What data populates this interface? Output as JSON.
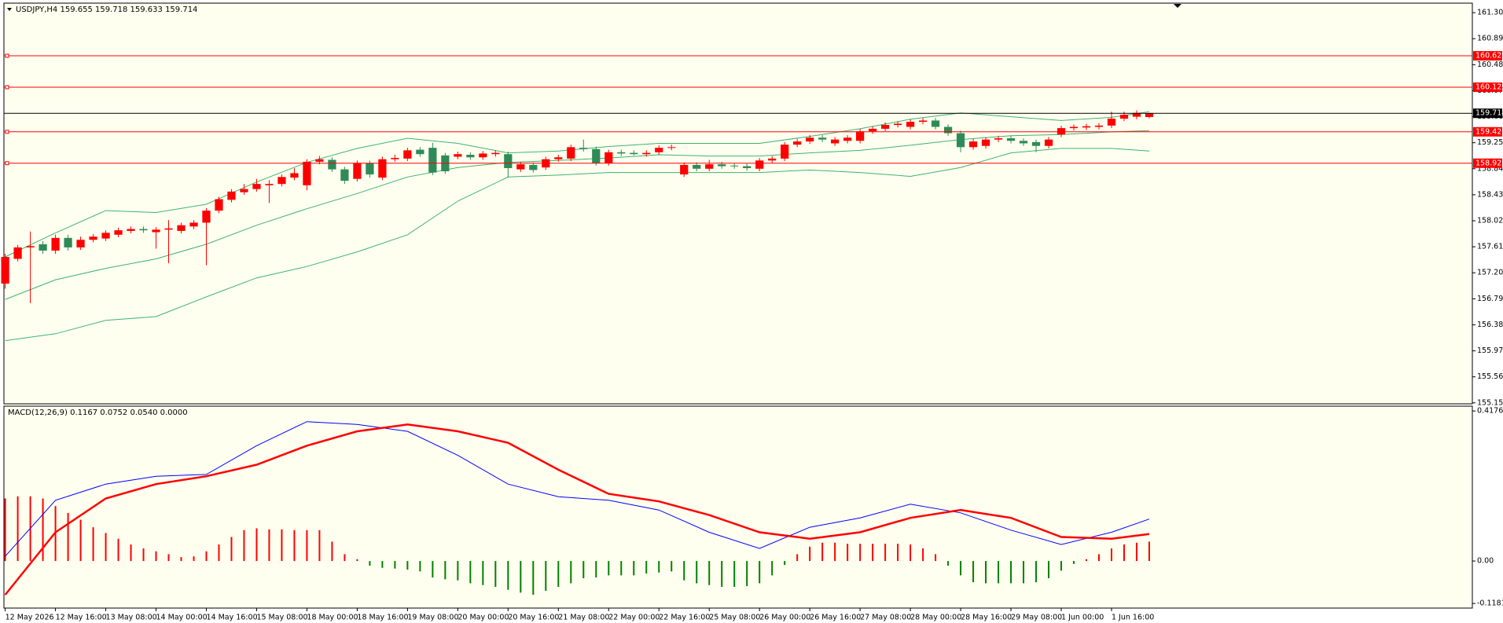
{
  "chart_data": [
    {
      "type": "candlestick",
      "title": "USDJPY,H4  159.655 159.718 159.633 159.714",
      "up_color": "#ff0000",
      "down_color": "#2e8b57",
      "xlim": [
        -0.1,
        116.7
      ],
      "ylim": [
        155.135,
        161.45
      ],
      "yticks": [
        {
          "value": 161.3,
          "label": "161.300"
        },
        {
          "value": 160.89,
          "label": "160.890"
        },
        {
          "value": 160.48,
          "label": "160.480"
        },
        {
          "value": 160.07,
          "label": "160.070"
        },
        {
          "value": 159.66,
          "label": "159.660"
        },
        {
          "value": 159.25,
          "label": "159.250"
        },
        {
          "value": 158.84,
          "label": "158.840"
        },
        {
          "value": 158.43,
          "label": "158.430"
        },
        {
          "value": 158.02,
          "label": "158.020"
        },
        {
          "value": 157.61,
          "label": "157.610"
        },
        {
          "value": 157.2,
          "label": "157.200"
        },
        {
          "value": 156.79,
          "label": "156.790"
        },
        {
          "value": 156.38,
          "label": "156.380"
        },
        {
          "value": 155.97,
          "label": "155.970"
        },
        {
          "value": 155.56,
          "label": "155.560"
        },
        {
          "value": 155.15,
          "label": "155.150"
        }
      ],
      "hlines": [
        {
          "value": 160.62,
          "label": "160.620",
          "color": "#ff0000"
        },
        {
          "value": 160.125,
          "label": "160.125",
          "color": "#ff0000"
        },
        {
          "value": 159.422,
          "label": "159.422",
          "color": "#ff0000"
        },
        {
          "value": 158.927,
          "label": "158.927",
          "color": "#ff0000"
        },
        {
          "value": 159.714,
          "label": "159.714",
          "color": "#000000"
        }
      ],
      "candles": [
        [
          157.03,
          157.5,
          156.95,
          157.45
        ],
        [
          157.42,
          157.64,
          157.38,
          157.6
        ],
        [
          157.6,
          157.85,
          156.72,
          157.62
        ],
        [
          157.65,
          157.7,
          157.5,
          157.55
        ],
        [
          157.55,
          157.8,
          157.5,
          157.75
        ],
        [
          157.75,
          157.8,
          157.55,
          157.6
        ],
        [
          157.6,
          157.77,
          157.56,
          157.72
        ],
        [
          157.72,
          157.81,
          157.68,
          157.77
        ],
        [
          157.74,
          157.87,
          157.7,
          157.83
        ],
        [
          157.8,
          157.91,
          157.76,
          157.87
        ],
        [
          157.86,
          157.93,
          157.82,
          157.89
        ],
        [
          157.89,
          157.93,
          157.83,
          157.87
        ],
        [
          157.84,
          157.92,
          157.58,
          157.88
        ],
        [
          157.88,
          158.03,
          157.35,
          157.9
        ],
        [
          157.86,
          157.99,
          157.82,
          157.95
        ],
        [
          157.93,
          158.03,
          157.89,
          157.99
        ],
        [
          157.99,
          158.22,
          157.32,
          158.18
        ],
        [
          158.18,
          158.4,
          158.14,
          158.36
        ],
        [
          158.35,
          158.52,
          158.31,
          158.48
        ],
        [
          158.47,
          158.6,
          158.43,
          158.52
        ],
        [
          158.52,
          158.68,
          158.48,
          158.6
        ],
        [
          158.58,
          158.66,
          158.3,
          158.6
        ],
        [
          158.6,
          158.75,
          158.56,
          158.71
        ],
        [
          158.7,
          158.85,
          158.66,
          158.77
        ],
        [
          158.58,
          158.99,
          158.5,
          158.95
        ],
        [
          158.95,
          159.04,
          158.91,
          158.99
        ],
        [
          158.98,
          159.02,
          158.79,
          158.83
        ],
        [
          158.83,
          158.87,
          158.6,
          158.65
        ],
        [
          158.68,
          158.97,
          158.64,
          158.93
        ],
        [
          158.93,
          158.97,
          158.7,
          158.75
        ],
        [
          158.7,
          159.03,
          158.66,
          158.99
        ],
        [
          158.99,
          159.06,
          158.95,
          159.01
        ],
        [
          159.0,
          159.17,
          158.96,
          159.13
        ],
        [
          159.14,
          159.18,
          159.03,
          159.07
        ],
        [
          159.17,
          159.25,
          158.74,
          158.78
        ],
        [
          159.05,
          159.09,
          158.76,
          158.8
        ],
        [
          159.03,
          159.11,
          158.99,
          159.07
        ],
        [
          159.06,
          159.1,
          158.98,
          159.02
        ],
        [
          159.02,
          159.12,
          158.98,
          159.08
        ],
        [
          159.07,
          159.13,
          159.03,
          159.09
        ],
        [
          159.07,
          159.11,
          158.7,
          158.85
        ],
        [
          158.83,
          158.95,
          158.79,
          158.91
        ],
        [
          158.9,
          158.94,
          158.78,
          158.82
        ],
        [
          158.86,
          159.03,
          158.82,
          158.99
        ],
        [
          158.99,
          159.06,
          158.95,
          159.02
        ],
        [
          159.0,
          159.22,
          158.96,
          159.18
        ],
        [
          159.17,
          159.3,
          159.11,
          159.15
        ],
        [
          159.15,
          159.19,
          158.89,
          158.93
        ],
        [
          158.93,
          159.14,
          158.89,
          159.1
        ],
        [
          159.1,
          159.14,
          159.04,
          159.08
        ],
        [
          159.09,
          159.13,
          159.05,
          159.07
        ],
        [
          159.07,
          159.13,
          159.03,
          159.09
        ],
        [
          159.1,
          159.21,
          159.06,
          159.17
        ],
        [
          159.17,
          159.22,
          159.13,
          159.18
        ],
        [
          158.75,
          158.94,
          158.71,
          158.9
        ],
        [
          158.9,
          158.94,
          158.8,
          158.84
        ],
        [
          158.84,
          158.98,
          158.8,
          158.91
        ],
        [
          158.91,
          158.95,
          158.84,
          158.88
        ],
        [
          158.89,
          158.93,
          158.84,
          158.88
        ],
        [
          158.88,
          158.92,
          158.81,
          158.85
        ],
        [
          158.84,
          159.01,
          158.8,
          158.97
        ],
        [
          158.97,
          159.04,
          158.93,
          159.0
        ],
        [
          159.0,
          159.26,
          158.96,
          159.22
        ],
        [
          159.22,
          159.31,
          159.18,
          159.27
        ],
        [
          159.27,
          159.37,
          159.23,
          159.33
        ],
        [
          159.33,
          159.37,
          159.26,
          159.3
        ],
        [
          159.24,
          159.34,
          159.2,
          159.3
        ],
        [
          159.28,
          159.37,
          159.24,
          159.33
        ],
        [
          159.28,
          159.47,
          159.24,
          159.43
        ],
        [
          159.43,
          159.51,
          159.39,
          159.47
        ],
        [
          159.47,
          159.57,
          159.43,
          159.53
        ],
        [
          159.53,
          159.59,
          159.49,
          159.55
        ],
        [
          159.5,
          159.62,
          159.46,
          159.58
        ],
        [
          159.58,
          159.64,
          159.54,
          159.6
        ],
        [
          159.6,
          159.64,
          159.46,
          159.5
        ],
        [
          159.5,
          159.54,
          159.36,
          159.4
        ],
        [
          159.4,
          159.44,
          159.1,
          159.18
        ],
        [
          159.18,
          159.31,
          159.14,
          159.27
        ],
        [
          159.2,
          159.34,
          159.16,
          159.3
        ],
        [
          159.3,
          159.36,
          159.26,
          159.32
        ],
        [
          159.32,
          159.36,
          159.24,
          159.28
        ],
        [
          159.28,
          159.32,
          159.2,
          159.24
        ],
        [
          159.26,
          159.3,
          159.1,
          159.2
        ],
        [
          159.2,
          159.34,
          159.16,
          159.3
        ],
        [
          159.38,
          159.52,
          159.34,
          159.48
        ],
        [
          159.48,
          159.54,
          159.44,
          159.5
        ],
        [
          159.49,
          159.55,
          159.45,
          159.51
        ],
        [
          159.5,
          159.56,
          159.46,
          159.52
        ],
        [
          159.52,
          159.74,
          159.48,
          159.63
        ],
        [
          159.63,
          159.74,
          159.59,
          159.69
        ],
        [
          159.66,
          159.76,
          159.62,
          159.72
        ],
        [
          159.655,
          159.718,
          159.633,
          159.714
        ]
      ],
      "series": [
        {
          "color": "#3cb371",
          "x": [
            0,
            4,
            8,
            12,
            16,
            20,
            24,
            28,
            32,
            36,
            40,
            44,
            48,
            52,
            56,
            60,
            64,
            68,
            72,
            76,
            80,
            84,
            88,
            91
          ],
          "values": [
            157.45,
            157.83,
            158.18,
            158.15,
            158.28,
            158.63,
            158.94,
            159.16,
            159.32,
            159.24,
            159.09,
            159.12,
            159.19,
            159.24,
            159.24,
            159.24,
            159.35,
            159.47,
            159.62,
            159.72,
            159.66,
            159.6,
            159.65,
            159.74
          ]
        },
        {
          "color": "#3cb371",
          "x": [
            0,
            4,
            8,
            12,
            16,
            20,
            24,
            28,
            32,
            36,
            40,
            44,
            48,
            52,
            56,
            60,
            64,
            68,
            72,
            76,
            80,
            84,
            88,
            91
          ],
          "values": [
            156.78,
            157.09,
            157.27,
            157.42,
            157.65,
            157.95,
            158.21,
            158.45,
            158.71,
            158.86,
            158.94,
            158.97,
            159.01,
            159.06,
            159.04,
            159.04,
            159.09,
            159.13,
            159.21,
            159.3,
            159.36,
            159.38,
            159.42,
            159.44
          ]
        },
        {
          "color": "#3cb371",
          "x": [
            0,
            4,
            8,
            12,
            16,
            20,
            24,
            28,
            32,
            36,
            40,
            44,
            48,
            52,
            56,
            60,
            64,
            68,
            72,
            76,
            80,
            84,
            88,
            91
          ],
          "values": [
            156.13,
            156.24,
            156.45,
            156.51,
            156.82,
            157.12,
            157.3,
            157.53,
            157.8,
            158.33,
            158.71,
            158.74,
            158.78,
            158.78,
            158.78,
            158.78,
            158.82,
            158.78,
            158.72,
            158.86,
            159.09,
            159.16,
            159.16,
            159.12
          ]
        }
      ]
    },
    {
      "type": "macd",
      "title": "MACD(12,26,9) 0.1167 0.0752 0.0540 0.0000",
      "up_color": "#ff0000",
      "down_color": "#008000",
      "xlim": [
        -0.1,
        116.7
      ],
      "ylim": [
        -0.131,
        0.431
      ],
      "yticks": [
        {
          "value": 0.4176,
          "label": "0.4176"
        },
        {
          "value": 0,
          "label": "0.00"
        },
        {
          "value": -0.1181,
          "label": "-0.1181"
        }
      ],
      "xticks": [
        {
          "value": 0,
          "label": "12 May 2026"
        },
        {
          "value": 4,
          "label": "12 May 16:00"
        },
        {
          "value": 8,
          "label": "13 May 08:00"
        },
        {
          "value": 12,
          "label": "14 May 00:00"
        },
        {
          "value": 16,
          "label": "14 May 16:00"
        },
        {
          "value": 20,
          "label": "15 May 08:00"
        },
        {
          "value": 24,
          "label": "18 May 00:00"
        },
        {
          "value": 28,
          "label": "18 May 16:00"
        },
        {
          "value": 32,
          "label": "19 May 08:00"
        },
        {
          "value": 36,
          "label": "20 May 00:00"
        },
        {
          "value": 40,
          "label": "20 May 16:00"
        },
        {
          "value": 44,
          "label": "21 May 08:00"
        },
        {
          "value": 48,
          "label": "22 May 00:00"
        },
        {
          "value": 52,
          "label": "22 May 16:00"
        },
        {
          "value": 56,
          "label": "25 May 08:00"
        },
        {
          "value": 60,
          "label": "26 May 00:00"
        },
        {
          "value": 64,
          "label": "26 May 16:00"
        },
        {
          "value": 68,
          "label": "27 May 08:00"
        },
        {
          "value": 72,
          "label": "28 May 00:00"
        },
        {
          "value": 76,
          "label": "28 May 16:00"
        },
        {
          "value": 80,
          "label": "29 May 08:00"
        },
        {
          "value": 84,
          "label": "1 Jun 00:00"
        },
        {
          "value": 88,
          "label": "1 Jun 16:00"
        }
      ],
      "values": [
        0.174,
        0.18,
        0.18,
        0.174,
        0.153,
        0.134,
        0.115,
        0.094,
        0.078,
        0.062,
        0.046,
        0.035,
        0.027,
        0.019,
        0.011,
        0.013,
        0.027,
        0.046,
        0.067,
        0.086,
        0.091,
        0.088,
        0.088,
        0.086,
        0.086,
        0.086,
        0.054,
        0.019,
        0.005,
        -0.013,
        -0.019,
        -0.021,
        -0.024,
        -0.029,
        -0.046,
        -0.051,
        -0.054,
        -0.062,
        -0.067,
        -0.072,
        -0.08,
        -0.088,
        -0.094,
        -0.083,
        -0.072,
        -0.062,
        -0.048,
        -0.046,
        -0.04,
        -0.04,
        -0.04,
        -0.035,
        -0.032,
        -0.029,
        -0.054,
        -0.062,
        -0.067,
        -0.072,
        -0.072,
        -0.07,
        -0.062,
        -0.04,
        -0.011,
        0.019,
        0.04,
        0.051,
        0.051,
        0.048,
        0.048,
        0.048,
        0.048,
        0.048,
        0.046,
        0.035,
        0.019,
        -0.013,
        -0.04,
        -0.059,
        -0.062,
        -0.062,
        -0.062,
        -0.062,
        -0.059,
        -0.048,
        -0.027,
        -0.008,
        0.005,
        0.019,
        0.035,
        0.046,
        0.051,
        0.054
      ],
      "series": [
        {
          "color": "#0000ff",
          "x": [
            0,
            4,
            8,
            12,
            16,
            20,
            24,
            28,
            32,
            36,
            40,
            44,
            48,
            52,
            56,
            60,
            64,
            68,
            72,
            76,
            80,
            84,
            88,
            91
          ],
          "values": [
            0.013,
            0.169,
            0.214,
            0.236,
            0.241,
            0.321,
            0.388,
            0.38,
            0.361,
            0.294,
            0.214,
            0.179,
            0.169,
            0.142,
            0.08,
            0.035,
            0.094,
            0.12,
            0.158,
            0.134,
            0.086,
            0.046,
            0.08,
            0.1167
          ]
        },
        {
          "color": "#ff0000",
          "width": 2.5,
          "x": [
            0,
            4,
            8,
            12,
            16,
            20,
            24,
            28,
            32,
            36,
            40,
            44,
            48,
            52,
            56,
            60,
            64,
            68,
            72,
            76,
            80,
            84,
            88,
            91
          ],
          "values": [
            -0.094,
            0.08,
            0.174,
            0.214,
            0.236,
            0.268,
            0.321,
            0.361,
            0.38,
            0.361,
            0.329,
            0.254,
            0.187,
            0.166,
            0.128,
            0.08,
            0.062,
            0.08,
            0.12,
            0.142,
            0.12,
            0.067,
            0.062,
            0.0752
          ]
        }
      ]
    }
  ]
}
